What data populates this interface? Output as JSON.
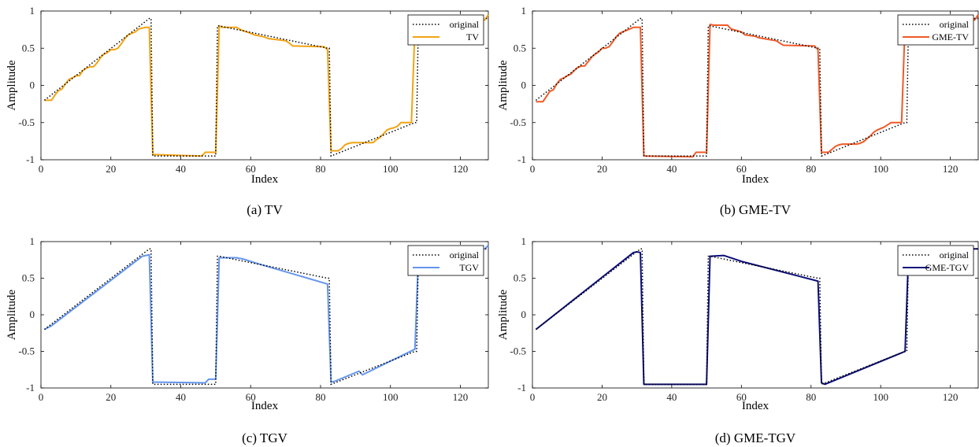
{
  "chart_data": [
    {
      "type": "line",
      "caption": "(a) TV",
      "xlabel": "Index",
      "ylabel": "Amplitude",
      "xlim": [
        0,
        128
      ],
      "ylim": [
        -1,
        1
      ],
      "xticks": [
        0,
        20,
        40,
        60,
        80,
        100,
        120
      ],
      "yticks": [
        -1,
        -0.5,
        0,
        0.5,
        1
      ],
      "grid": false,
      "legend_position": "top-right",
      "series": [
        {
          "name": "original",
          "color": "#000000",
          "style": "dotted",
          "ref": "original"
        },
        {
          "name": "TV",
          "color": "#F2A312",
          "style": "solid",
          "x": [
            1,
            3,
            4,
            5,
            6,
            7,
            8,
            9,
            10,
            11,
            12,
            13,
            14,
            15,
            16,
            17,
            18,
            19,
            20,
            21,
            22,
            23,
            24,
            25,
            26,
            27,
            28,
            29,
            30,
            31,
            32,
            46,
            47,
            50,
            51,
            52,
            56,
            57,
            60,
            61,
            64,
            65,
            70,
            71,
            72,
            81,
            82,
            83,
            84,
            85,
            86,
            87,
            88,
            89,
            90,
            91,
            92,
            93,
            94,
            95,
            96,
            97,
            98,
            99,
            100,
            101,
            102,
            103,
            104,
            105,
            106,
            107,
            108,
            109,
            127,
            128
          ],
          "values": [
            -0.2,
            -0.2,
            -0.13,
            -0.07,
            -0.05,
            0.02,
            0.08,
            0.1,
            0.13,
            0.13,
            0.2,
            0.23,
            0.25,
            0.25,
            0.3,
            0.37,
            0.42,
            0.44,
            0.48,
            0.48,
            0.5,
            0.56,
            0.63,
            0.68,
            0.7,
            0.72,
            0.76,
            0.77,
            0.78,
            0.78,
            -0.93,
            -0.95,
            -0.9,
            -0.9,
            0.8,
            0.78,
            0.78,
            0.75,
            0.7,
            0.68,
            0.65,
            0.63,
            0.6,
            0.57,
            0.53,
            0.52,
            0.48,
            -0.88,
            -0.88,
            -0.88,
            -0.85,
            -0.8,
            -0.78,
            -0.77,
            -0.77,
            -0.77,
            -0.77,
            -0.77,
            -0.77,
            -0.77,
            -0.73,
            -0.7,
            -0.65,
            -0.6,
            -0.58,
            -0.57,
            -0.55,
            -0.5,
            -0.5,
            -0.5,
            -0.5,
            0.77,
            0.85,
            0.88,
            0.88,
            0.95
          ]
        }
      ]
    },
    {
      "type": "line",
      "caption": "(b) GME-TV",
      "xlabel": "Index",
      "ylabel": "Amplitude",
      "xlim": [
        0,
        128
      ],
      "ylim": [
        -1,
        1
      ],
      "xticks": [
        0,
        20,
        40,
        60,
        80,
        100,
        120
      ],
      "yticks": [
        -1,
        -0.5,
        0,
        0.5,
        1
      ],
      "grid": false,
      "legend_position": "top-right",
      "series": [
        {
          "name": "original",
          "color": "#000000",
          "style": "dotted",
          "ref": "original"
        },
        {
          "name": "GME-TV",
          "color": "#F05A28",
          "style": "solid",
          "x": [
            1,
            3,
            4,
            5,
            6,
            7,
            8,
            9,
            10,
            11,
            12,
            13,
            14,
            15,
            16,
            17,
            18,
            19,
            20,
            21,
            22,
            23,
            24,
            25,
            26,
            27,
            28,
            29,
            30,
            31,
            32,
            46,
            47,
            50,
            51,
            52,
            56,
            57,
            60,
            61,
            64,
            65,
            70,
            71,
            72,
            81,
            82,
            83,
            84,
            85,
            86,
            87,
            88,
            89,
            90,
            91,
            92,
            93,
            94,
            95,
            96,
            97,
            98,
            99,
            100,
            101,
            102,
            103,
            104,
            105,
            106,
            107,
            108,
            109,
            127,
            128
          ],
          "values": [
            -0.22,
            -0.22,
            -0.15,
            -0.08,
            -0.06,
            0.02,
            0.08,
            0.1,
            0.13,
            0.15,
            0.2,
            0.24,
            0.26,
            0.26,
            0.32,
            0.38,
            0.42,
            0.45,
            0.5,
            0.5,
            0.52,
            0.58,
            0.65,
            0.7,
            0.72,
            0.74,
            0.76,
            0.78,
            0.78,
            0.78,
            -0.95,
            -0.96,
            -0.9,
            -0.9,
            0.82,
            0.81,
            0.81,
            0.76,
            0.72,
            0.68,
            0.66,
            0.64,
            0.6,
            0.57,
            0.54,
            0.53,
            0.48,
            -0.9,
            -0.9,
            -0.9,
            -0.86,
            -0.82,
            -0.8,
            -0.79,
            -0.79,
            -0.79,
            -0.79,
            -0.79,
            -0.78,
            -0.76,
            -0.72,
            -0.68,
            -0.63,
            -0.6,
            -0.58,
            -0.56,
            -0.53,
            -0.5,
            -0.5,
            -0.5,
            -0.5,
            0.83,
            0.87,
            0.88,
            0.88,
            0.95
          ]
        }
      ]
    },
    {
      "type": "line",
      "caption": "(c) TGV",
      "xlabel": "Index",
      "ylabel": "Amplitude",
      "xlim": [
        0,
        128
      ],
      "ylim": [
        -1,
        1
      ],
      "xticks": [
        0,
        20,
        40,
        60,
        80,
        100,
        120
      ],
      "yticks": [
        -1,
        -0.5,
        0,
        0.5,
        1
      ],
      "grid": false,
      "legend_position": "top-right",
      "series": [
        {
          "name": "original",
          "color": "#000000",
          "style": "dotted",
          "ref": "original"
        },
        {
          "name": "TGV",
          "color": "#6495ED",
          "style": "solid",
          "x": [
            1,
            3,
            29,
            31,
            32,
            47,
            48,
            50,
            51,
            56,
            58,
            62,
            82,
            83,
            84,
            91,
            92,
            107,
            108,
            111,
            127,
            128
          ],
          "values": [
            -0.2,
            -0.15,
            0.8,
            0.82,
            -0.92,
            -0.93,
            -0.88,
            -0.88,
            0.78,
            0.78,
            0.76,
            0.7,
            0.42,
            -0.92,
            -0.91,
            -0.77,
            -0.82,
            -0.47,
            0.8,
            0.88,
            0.9,
            0.95
          ]
        }
      ]
    },
    {
      "type": "line",
      "caption": "(d) GME-TGV",
      "xlabel": "Index",
      "ylabel": "Amplitude",
      "xlim": [
        0,
        128
      ],
      "ylim": [
        -1,
        1
      ],
      "xticks": [
        0,
        20,
        40,
        60,
        80,
        100,
        120
      ],
      "yticks": [
        -1,
        -0.5,
        0,
        0.5,
        1
      ],
      "grid": false,
      "legend_position": "top-right",
      "series": [
        {
          "name": "original",
          "color": "#000000",
          "style": "dotted",
          "ref": "original"
        },
        {
          "name": "GME-TGV",
          "color": "#0B0E7A",
          "style": "solid",
          "x": [
            1,
            29,
            30,
            31,
            32,
            50,
            51,
            55,
            60,
            82,
            83,
            84,
            107,
            108,
            110,
            112,
            128
          ],
          "values": [
            -0.2,
            0.85,
            0.86,
            0.85,
            -0.95,
            -0.95,
            0.8,
            0.81,
            0.73,
            0.46,
            -0.93,
            -0.95,
            -0.5,
            0.85,
            0.88,
            0.9,
            0.9
          ]
        }
      ]
    }
  ],
  "original_signal": {
    "x": [
      1,
      31,
      31.5,
      32,
      50,
      50.5,
      51,
      82,
      82.5,
      83,
      107,
      107.5,
      108,
      128
    ],
    "values": [
      -0.2,
      0.9,
      0.9,
      -0.95,
      -0.95,
      0.8,
      0.8,
      0.5,
      0.5,
      -0.95,
      -0.5,
      -0.5,
      0.9,
      0.9
    ]
  },
  "colors": {
    "axis": "#000000",
    "background": "#ffffff"
  }
}
